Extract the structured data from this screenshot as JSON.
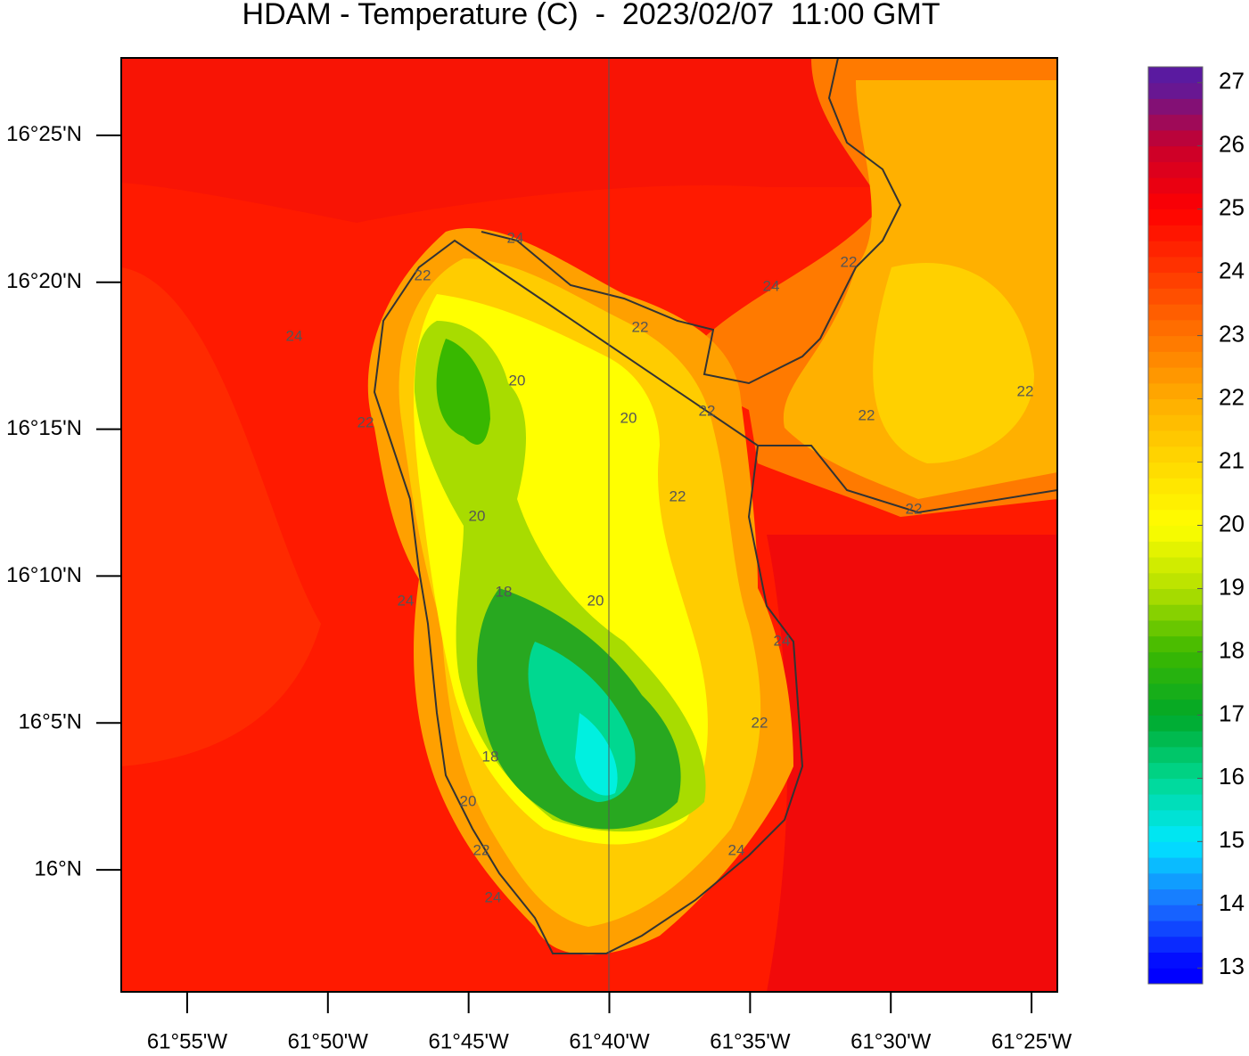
{
  "map": {
    "title": "HDAM - Temperature (C)  -  2023/02/07  11:00 GMT",
    "lon_lim": [
      -61.9557,
      -61.4014
    ],
    "lat_lim": [
      15.9308,
      16.4606
    ],
    "lon_ticks": [
      {
        "value": -61.91667,
        "label": "61°55'W"
      },
      {
        "value": -61.83333,
        "label": "61°50'W"
      },
      {
        "value": -61.75,
        "label": "61°45'W"
      },
      {
        "value": -61.66667,
        "label": "61°40'W"
      },
      {
        "value": -61.58333,
        "label": "61°35'W"
      },
      {
        "value": -61.5,
        "label": "61°30'W"
      },
      {
        "value": -61.41667,
        "label": "61°25'W"
      }
    ],
    "lat_ticks": [
      {
        "value": 16.41667,
        "label": "16°25'N"
      },
      {
        "value": 16.33333,
        "label": "16°20'N"
      },
      {
        "value": 16.25,
        "label": "16°15'N"
      },
      {
        "value": 16.16667,
        "label": "16°10'N"
      },
      {
        "value": 16.08333,
        "label": "16°5'N"
      },
      {
        "value": 16,
        "label": "16°N"
      }
    ],
    "contour_labels": [
      "24",
      "22",
      "24",
      "22",
      "20",
      "22",
      "24",
      "22",
      "20",
      "22",
      "22",
      "22",
      "22",
      "22",
      "20",
      "18",
      "20",
      "24",
      "24",
      "22",
      "18",
      "20",
      "22",
      "24",
      "24"
    ],
    "colorbar": {
      "lim": [
        12.75,
        27.25
      ],
      "ticks": [
        13,
        14,
        15,
        16,
        17,
        18,
        19,
        20,
        21,
        22,
        23,
        24,
        25,
        26,
        27
      ],
      "colors": [
        "#0000ff",
        "#1a70ff",
        "#00e8ff",
        "#00d890",
        "#00a828",
        "#3cb800",
        "#b4e000",
        "#ffff00",
        "#ffd800",
        "#ffac00",
        "#ff7400",
        "#ff3800",
        "#ff0000",
        "#c8002c",
        "#5a1aa0"
      ]
    }
  }
}
